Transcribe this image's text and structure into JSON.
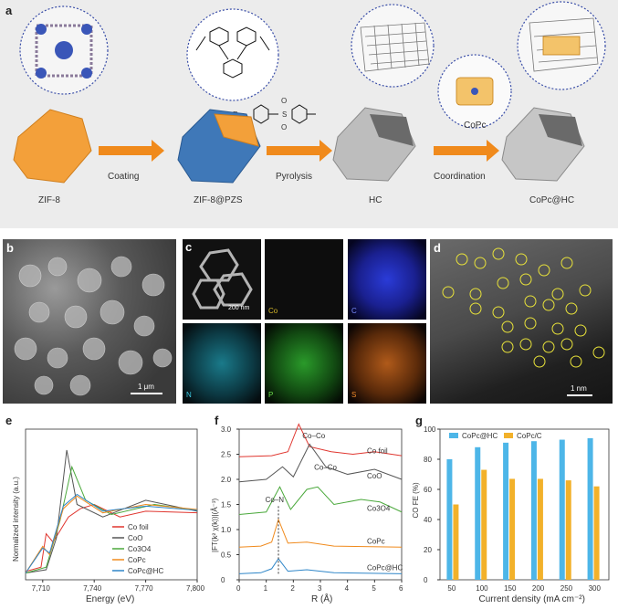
{
  "panel_a": {
    "letter": "a",
    "stages": [
      "ZIF-8",
      "ZIF-8@PZS",
      "HC",
      "CoPc@HC"
    ],
    "arrows": [
      "Coating",
      "Pyrolysis",
      "Coordination"
    ],
    "copc_label": "CoPc",
    "r_label": "R ="
  },
  "panel_b": {
    "letter": "b",
    "scale": "1 μm"
  },
  "panel_c": {
    "letter": "c",
    "scale": "200 nm",
    "elements": [
      "Co",
      "C",
      "N",
      "P",
      "S"
    ]
  },
  "panel_d": {
    "letter": "d",
    "scale": "1 nm"
  },
  "panel_e": {
    "letter": "e",
    "chart_data": {
      "type": "line",
      "xlabel": "Energy (eV)",
      "ylabel": "Normalized intensity (a.u.)",
      "xticks": [
        "7,710",
        "7,740",
        "7,770",
        "7,800"
      ],
      "xlim": [
        7700,
        7800
      ],
      "series": [
        {
          "name": "Co foil",
          "color": "#e0362f"
        },
        {
          "name": "CoO",
          "color": "#555555"
        },
        {
          "name": "Co3O4",
          "color": "#4aa83b"
        },
        {
          "name": "CoPc",
          "color": "#f08a1c"
        },
        {
          "name": "CoPc@HC",
          "color": "#2f86c8"
        }
      ]
    }
  },
  "panel_f": {
    "letter": "f",
    "chart_data": {
      "type": "line",
      "xlabel": "R (Å)",
      "ylabel": "|FT(k² χ(k))|(Å⁻³)",
      "xticks": [
        "0",
        "1",
        "2",
        "3",
        "4",
        "5",
        "6"
      ],
      "yticks": [
        "0",
        "0.5",
        "1.0",
        "1.5",
        "2.0",
        "2.5",
        "3.0"
      ],
      "xlim": [
        0,
        6
      ],
      "ylim": [
        0,
        3.0
      ],
      "annotations": [
        "Co–Co",
        "Co–Co",
        "Co–N"
      ],
      "series": [
        {
          "name": "Co foil",
          "color": "#e0362f"
        },
        {
          "name": "CoO",
          "color": "#555555"
        },
        {
          "name": "Co3O4",
          "color": "#4aa83b"
        },
        {
          "name": "CoPc",
          "color": "#f08a1c"
        },
        {
          "name": "CoPc@HC",
          "color": "#2f86c8"
        }
      ]
    }
  },
  "panel_g": {
    "letter": "g",
    "chart_data": {
      "type": "bar",
      "xlabel": "Current density (mA cm⁻²)",
      "ylabel": "CO FE (%)",
      "categories": [
        "50",
        "100",
        "150",
        "200",
        "250",
        "300"
      ],
      "yticks": [
        "0",
        "20",
        "40",
        "60",
        "80",
        "100"
      ],
      "ylim": [
        0,
        100
      ],
      "series": [
        {
          "name": "CoPc@HC",
          "color": "#4db6e8",
          "values": [
            80,
            88,
            91,
            92,
            93,
            94
          ]
        },
        {
          "name": "CoPc/C",
          "color": "#f2b12a",
          "values": [
            50,
            73,
            67,
            67,
            66,
            62
          ]
        }
      ]
    }
  }
}
